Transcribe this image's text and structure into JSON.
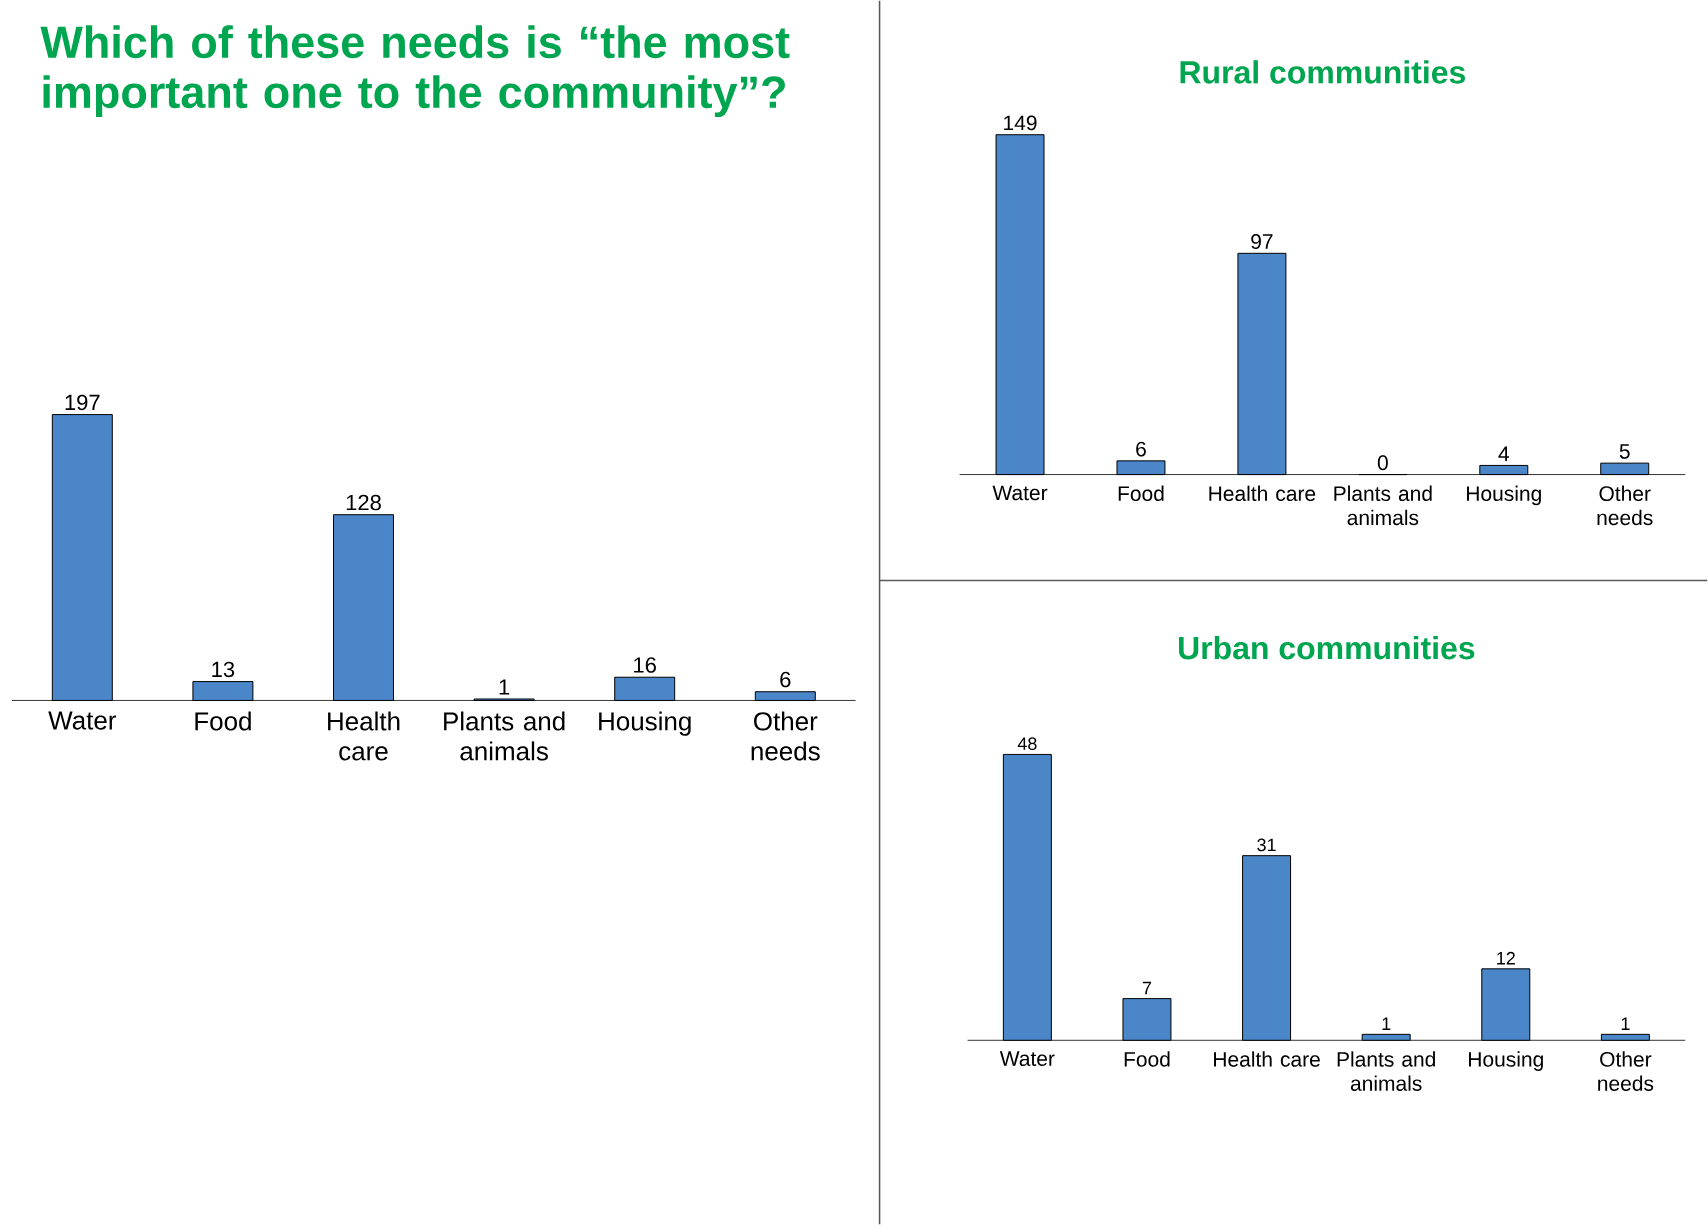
{
  "chart_data": [
    {
      "type": "bar",
      "title": "Which of these needs is “the most important one to the community”?",
      "categories": [
        "Water",
        "Food",
        "Health care",
        "Plants and animals",
        "Housing",
        "Other needs"
      ],
      "values": [
        197,
        13,
        128,
        1,
        16,
        6
      ],
      "color": "#4a86c8",
      "data_labels": true
    },
    {
      "type": "bar",
      "title": "Rural communities",
      "categories": [
        "Water",
        "Food",
        "Health care",
        "Plants and animals",
        "Housing",
        "Other needs"
      ],
      "values": [
        149,
        6,
        97,
        0,
        4,
        5
      ],
      "color": "#4a86c8",
      "data_labels": true
    },
    {
      "type": "bar",
      "title": "Urban communities",
      "categories": [
        "Water",
        "Food",
        "Health care",
        "Plants and animals",
        "Housing",
        "Other needs"
      ],
      "values": [
        48,
        7,
        31,
        1,
        12,
        1
      ],
      "color": "#4a86c8",
      "data_labels": true
    }
  ]
}
